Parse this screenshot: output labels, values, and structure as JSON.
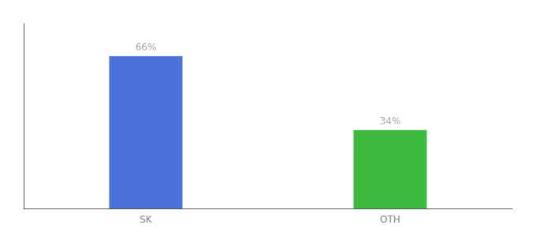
{
  "chart_data": {
    "type": "bar",
    "categories": [
      "SK",
      "OTH"
    ],
    "values": [
      66,
      34
    ],
    "value_labels": [
      "66%",
      "34%"
    ],
    "colors": [
      "#4a72d9",
      "#3dba3d"
    ],
    "ylim": [
      0,
      80
    ],
    "yticks": [],
    "grid": false,
    "data_labels": true,
    "tick_labels": "x"
  }
}
